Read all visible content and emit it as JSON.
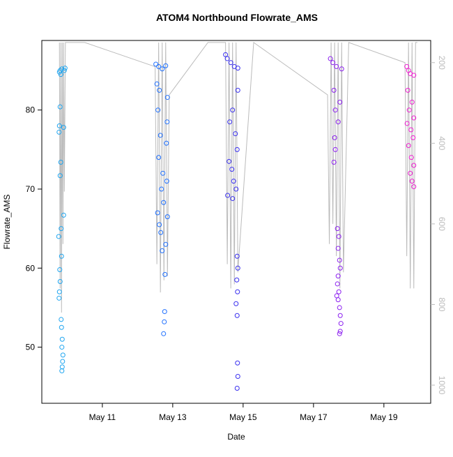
{
  "chart_data": {
    "type": "scatter",
    "title": "ATOM4 Northbound Flowrate_AMS",
    "xlabel": "Date",
    "ylabel": "Flowrate_AMS",
    "xlim": [
      9.28,
      20.33
    ],
    "xticks": [
      {
        "value": 11,
        "label": "May 11"
      },
      {
        "value": 13,
        "label": "May 13"
      },
      {
        "value": 15,
        "label": "May 15"
      },
      {
        "value": 17,
        "label": "May 17"
      },
      {
        "value": 19,
        "label": "May 19"
      }
    ],
    "ylim": [
      42.9,
      88.8
    ],
    "yticks": [
      50,
      60,
      70,
      80
    ],
    "y2lim": [
      1045,
      145
    ],
    "y2ticks": [
      200,
      400,
      600,
      800,
      1000
    ],
    "y2color": "#bbbbbb",
    "series": [
      {
        "color": "#1ea5f0",
        "x": [
          9.78,
          9.8,
          9.82,
          9.85,
          9.8,
          9.78,
          9.77,
          9.82,
          9.8,
          9.9,
          9.83,
          9.76,
          9.84,
          9.79,
          9.8,
          9.78,
          9.77,
          9.83,
          9.84,
          9.86,
          9.85,
          9.88,
          9.87,
          9.86,
          9.85,
          9.9,
          9.92,
          9.94
        ],
        "values": [
          84.8,
          85,
          84.5,
          85.2,
          80.4,
          78,
          77.2,
          73.4,
          71.7,
          66.7,
          65,
          64,
          61.5,
          59.8,
          58.3,
          57,
          56.2,
          53.5,
          52.5,
          51,
          50,
          49,
          48.2,
          47.5,
          47,
          77.8,
          85,
          85.3
        ]
      },
      {
        "color": "#1f70ff",
        "x": [
          12.52,
          12.6,
          12.7,
          12.8,
          12.55,
          12.62,
          12.85,
          12.58,
          12.84,
          12.65,
          12.82,
          12.6,
          12.72,
          12.83,
          12.68,
          12.74,
          12.57,
          12.85,
          12.62,
          12.66,
          12.8,
          12.7,
          12.78,
          12.77,
          12.76,
          12.74
        ],
        "values": [
          85.8,
          85.5,
          85.2,
          85.6,
          83.3,
          82.5,
          81.6,
          80,
          78.5,
          76.8,
          75.8,
          74,
          72,
          71,
          70,
          68.3,
          67,
          66.5,
          65.5,
          64.5,
          63,
          62.2,
          59.2,
          54.5,
          53.2,
          51.7
        ]
      },
      {
        "color": "#3a30f0",
        "x": [
          14.5,
          14.55,
          14.65,
          14.75,
          14.85,
          14.85,
          14.7,
          14.62,
          14.78,
          14.83,
          14.6,
          14.68,
          14.73,
          14.8,
          14.56,
          14.7,
          14.83,
          14.85,
          14.82,
          14.84,
          14.8,
          14.83,
          14.84,
          14.85,
          14.83
        ],
        "values": [
          87,
          86.5,
          86,
          85.5,
          85.3,
          82.5,
          80,
          78.5,
          77,
          75,
          73.5,
          72.5,
          71,
          70,
          69.2,
          68.8,
          61.5,
          60,
          58.5,
          57,
          55.5,
          54,
          48,
          46.3,
          44.8
        ]
      },
      {
        "color": "#8c1ff0",
        "x": [
          17.48,
          17.55,
          17.65,
          17.8,
          17.58,
          17.75,
          17.62,
          17.7,
          17.6,
          17.62,
          17.58,
          17.68,
          17.72,
          17.7,
          17.74,
          17.76,
          17.7,
          17.68,
          17.72,
          17.66,
          17.7,
          17.74,
          17.76,
          17.78,
          17.76,
          17.74
        ],
        "values": [
          86.5,
          86,
          85.5,
          85.2,
          82.5,
          81,
          80,
          78.5,
          76.5,
          75,
          73.4,
          65,
          64,
          62.5,
          61,
          60,
          59,
          58,
          57,
          56.5,
          56,
          55,
          54,
          53,
          52,
          51.7
        ]
      },
      {
        "color": "#f01ed2",
        "x": [
          19.65,
          19.7,
          19.75,
          19.85,
          19.68,
          19.8,
          19.72,
          19.85,
          19.66,
          19.77,
          19.83,
          19.7,
          19.78,
          19.85,
          19.75,
          19.8,
          19.85
        ],
        "values": [
          85.5,
          85,
          84.6,
          84.4,
          82.5,
          81,
          80,
          79,
          78.3,
          77.5,
          76.5,
          75.5,
          74,
          73,
          72,
          71,
          70.3
        ]
      },
      {
        "type": "line",
        "axis": "y2",
        "color": "#bbbbbb",
        "x": [
          9.78,
          9.8,
          9.82,
          9.84,
          9.86,
          9.88,
          9.9,
          9.92,
          9.95,
          10.5,
          12.5,
          12.55,
          12.6,
          12.65,
          12.7,
          12.75,
          12.8,
          12.85,
          12.9,
          14.0,
          14.5,
          14.55,
          14.6,
          14.65,
          14.7,
          14.75,
          14.8,
          14.85,
          15.3,
          17.4,
          17.45,
          17.5,
          17.55,
          17.6,
          17.65,
          17.7,
          17.75,
          17.8,
          17.85,
          18.0,
          19.6,
          19.65,
          19.7,
          19.75,
          19.8,
          19.85,
          19.9,
          19.95
        ],
        "values": [
          150,
          760,
          150,
          820,
          150,
          650,
          150,
          520,
          150,
          150,
          210,
          700,
          150,
          770,
          150,
          740,
          150,
          730,
          280,
          150,
          150,
          700,
          150,
          760,
          150,
          750,
          150,
          720,
          150,
          280,
          650,
          150,
          600,
          150,
          680,
          150,
          760,
          150,
          720,
          150,
          200,
          680,
          150,
          760,
          150,
          760,
          150,
          150
        ]
      }
    ]
  }
}
